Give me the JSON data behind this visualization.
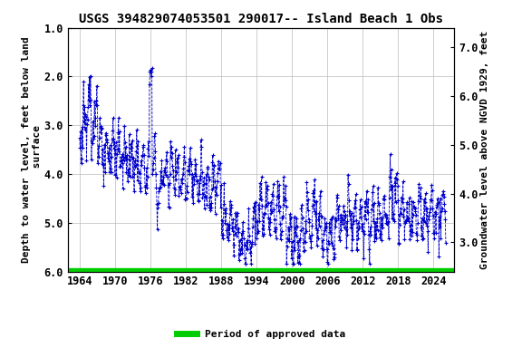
{
  "title": "USGS 394829074053501 290017-- Island Beach 1 Obs",
  "ylabel_left": "Depth to water level, feet below land\n surface",
  "ylabel_right": "Groundwater level above NGVD 1929, feet",
  "ylim_left": [
    6.0,
    1.0
  ],
  "ylim_right": [
    2.4,
    7.4
  ],
  "xlim": [
    1962.0,
    2027.5
  ],
  "xticks": [
    1964,
    1970,
    1976,
    1982,
    1988,
    1994,
    2000,
    2006,
    2012,
    2018,
    2024
  ],
  "yticks_left": [
    1.0,
    2.0,
    3.0,
    4.0,
    5.0,
    6.0
  ],
  "yticks_right": [
    3.0,
    4.0,
    5.0,
    6.0,
    7.0
  ],
  "legend_label": "Period of approved data",
  "legend_color": "#00cc00",
  "data_color": "#0000cc",
  "background_color": "#ffffff",
  "grid_color": "#bbbbbb",
  "title_fontsize": 10,
  "label_fontsize": 8,
  "tick_fontsize": 8.5,
  "approved_line_y": 6.0
}
